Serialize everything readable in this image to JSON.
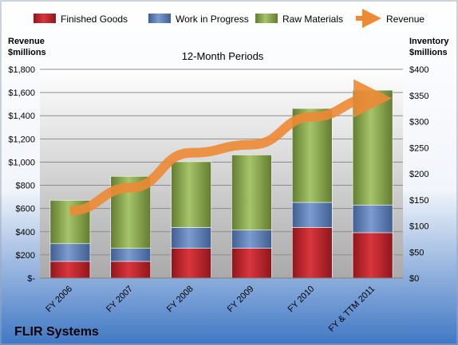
{
  "chart_data": {
    "type": "bar",
    "stacked": true,
    "subtitle": "12-Month Periods",
    "company": "FLIR Systems",
    "categories": [
      "FY 2006",
      "FY 2007",
      "FY 2008",
      "FY 2009",
      "FY 2010",
      "FY & TTM 2011"
    ],
    "series": [
      {
        "name": "Finished Goods",
        "axis": "right",
        "color": "#c0282f",
        "values": [
          32,
          32,
          57,
          57,
          97,
          87
        ]
      },
      {
        "name": "Work in Progress",
        "axis": "right",
        "color": "#5b7fb8",
        "values": [
          34,
          25,
          40,
          35,
          48,
          53
        ]
      },
      {
        "name": "Raw Materials",
        "axis": "right",
        "color": "#8cab4e",
        "values": [
          83,
          138,
          126,
          144,
          180,
          220
        ]
      },
      {
        "name": "Revenue",
        "axis": "left",
        "type": "line",
        "color": "#ee8a35",
        "values": [
          580,
          780,
          1080,
          1150,
          1390,
          1550
        ]
      }
    ],
    "left_axis": {
      "title": "Revenue $millions",
      "title_lines": [
        "Revenue",
        "$millions"
      ],
      "ylim": [
        0,
        1800
      ],
      "ticks": [
        {
          "label": "$-",
          "v": 0
        },
        {
          "label": "$200",
          "v": 200
        },
        {
          "label": "$400",
          "v": 400
        },
        {
          "label": "$600",
          "v": 600
        },
        {
          "label": "$800",
          "v": 800
        },
        {
          "label": "$1,000",
          "v": 1000
        },
        {
          "label": "$1,200",
          "v": 1200
        },
        {
          "label": "$1,400",
          "v": 1400
        },
        {
          "label": "$1,600",
          "v": 1600
        },
        {
          "label": "$1,800",
          "v": 1800
        }
      ]
    },
    "right_axis": {
      "title": "Inventory $millions",
      "title_lines": [
        "Inventory",
        "$millions"
      ],
      "ylim": [
        0,
        400
      ],
      "ticks": [
        {
          "label": "$0",
          "v": 0
        },
        {
          "label": "$50",
          "v": 50
        },
        {
          "label": "$100",
          "v": 100
        },
        {
          "label": "$150",
          "v": 150
        },
        {
          "label": "$200",
          "v": 200
        },
        {
          "label": "$250",
          "v": 250
        },
        {
          "label": "$300",
          "v": 300
        },
        {
          "label": "$350",
          "v": 350
        },
        {
          "label": "$400",
          "v": 400
        }
      ]
    },
    "grid": true,
    "legend_position": "top"
  }
}
